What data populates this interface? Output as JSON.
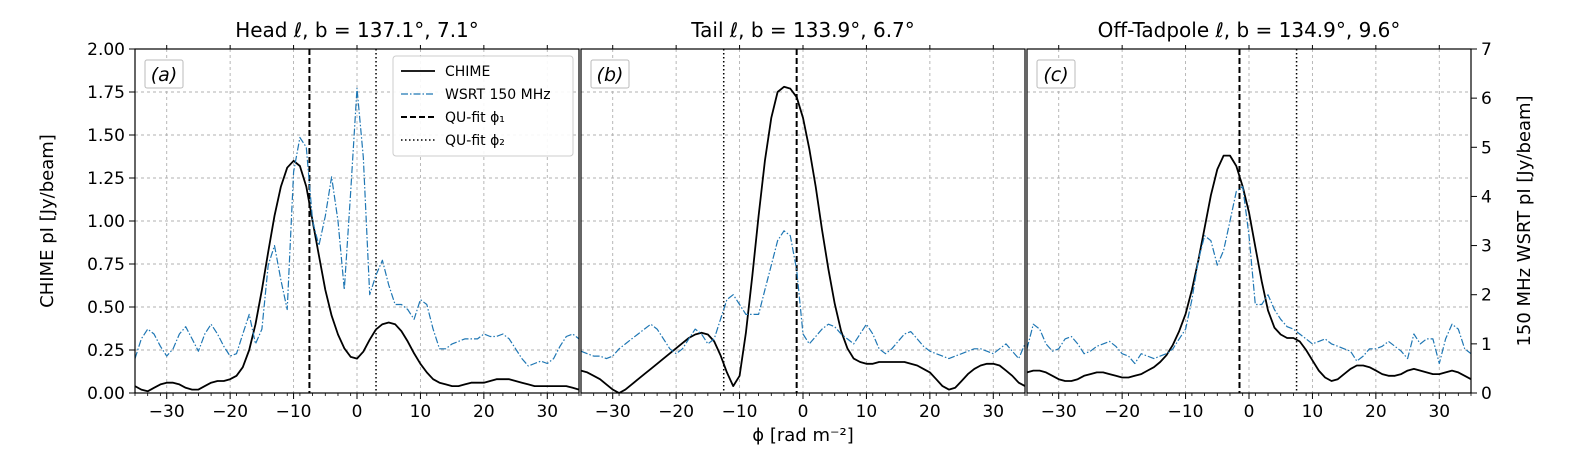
{
  "chart_data": {
    "type": "line",
    "xlabel": "ϕ [rad m⁻²]",
    "ylabel_left": "CHIME pI [Jy/beam]",
    "ylabel_right": "150 MHz WSRT pI [Jy/beam]",
    "xlim": [
      -35,
      35
    ],
    "ylim_left": [
      0,
      2.0
    ],
    "ylim_right": [
      0,
      7
    ],
    "x_ticks": [
      -30,
      -20,
      -10,
      0,
      10,
      20,
      30
    ],
    "x_tick_labels": [
      "−30",
      "−20",
      "−10",
      "0",
      "10",
      "20",
      "30"
    ],
    "y_left_ticks": [
      0,
      0.25,
      0.5,
      0.75,
      1.0,
      1.25,
      1.5,
      1.75,
      2.0
    ],
    "y_left_tick_labels": [
      "0.00",
      "0.25",
      "0.50",
      "0.75",
      "1.00",
      "1.25",
      "1.50",
      "1.75",
      "2.00"
    ],
    "y_right_ticks": [
      0,
      1,
      2,
      3,
      4,
      5,
      6,
      7
    ],
    "y_right_tick_labels": [
      "0",
      "1",
      "2",
      "3",
      "4",
      "5",
      "6",
      "7"
    ],
    "grid": true,
    "legend": {
      "placement": "top-right of panel (a)",
      "entries": [
        "CHIME",
        "WSRT 150 MHz",
        "QU-fit ϕ₁",
        "QU-fit ϕ₂"
      ]
    },
    "colors": {
      "chime": "#000000",
      "wsrt": "#1f77b4",
      "grid": "#b0b0b0"
    },
    "panels": [
      {
        "tag": "(a)",
        "title": "Head ℓ, b = 137.1°, 7.1°",
        "phi1": -7.5,
        "phi2": 3.0,
        "series": [
          {
            "name": "CHIME",
            "x": [
              -35,
              -34,
              -33,
              -32,
              -31,
              -30,
              -29,
              -28,
              -27,
              -26,
              -25,
              -24,
              -23,
              -22,
              -21,
              -20,
              -19,
              -18,
              -17,
              -16,
              -15,
              -14,
              -13,
              -12,
              -11,
              -10,
              -9,
              -8,
              -7,
              -6,
              -5,
              -4,
              -3,
              -2,
              -1,
              0,
              1,
              2,
              3,
              4,
              5,
              6,
              7,
              8,
              9,
              10,
              11,
              12,
              13,
              14,
              15,
              16,
              17,
              18,
              19,
              20,
              21,
              22,
              23,
              24,
              25,
              26,
              27,
              28,
              29,
              30,
              31,
              32,
              33,
              34,
              35
            ],
            "y": [
              0.04,
              0.02,
              0.01,
              0.03,
              0.05,
              0.06,
              0.06,
              0.05,
              0.03,
              0.02,
              0.02,
              0.04,
              0.06,
              0.07,
              0.07,
              0.08,
              0.1,
              0.15,
              0.25,
              0.4,
              0.6,
              0.82,
              1.03,
              1.2,
              1.31,
              1.35,
              1.32,
              1.2,
              1.0,
              0.8,
              0.6,
              0.45,
              0.34,
              0.26,
              0.21,
              0.2,
              0.24,
              0.31,
              0.37,
              0.4,
              0.41,
              0.4,
              0.36,
              0.3,
              0.23,
              0.17,
              0.12,
              0.08,
              0.06,
              0.05,
              0.04,
              0.04,
              0.05,
              0.06,
              0.06,
              0.06,
              0.07,
              0.08,
              0.08,
              0.08,
              0.07,
              0.06,
              0.05,
              0.04,
              0.04,
              0.04,
              0.04,
              0.04,
              0.04,
              0.03,
              0.02
            ]
          },
          {
            "name": "WSRT 150 MHz",
            "x": [
              -35,
              -34,
              -33,
              -32,
              -31,
              -30,
              -29,
              -28,
              -27,
              -26,
              -25,
              -24,
              -23,
              -22,
              -21,
              -20,
              -19,
              -18,
              -17,
              -16,
              -15,
              -14,
              -13,
              -12,
              -11,
              -10,
              -9,
              -8,
              -7,
              -6,
              -5,
              -4,
              -3,
              -2,
              -1,
              0,
              1,
              2,
              3,
              4,
              5,
              6,
              7,
              8,
              9,
              10,
              11,
              12,
              13,
              14,
              15,
              16,
              17,
              18,
              19,
              20,
              21,
              22,
              23,
              24,
              25,
              26,
              27,
              28,
              29,
              30,
              31,
              32,
              33,
              34,
              35
            ],
            "y": [
              0.7,
              1.1,
              1.3,
              1.2,
              0.95,
              0.75,
              0.9,
              1.2,
              1.35,
              1.1,
              0.85,
              1.2,
              1.4,
              1.2,
              0.95,
              0.75,
              0.8,
              1.2,
              1.6,
              1.0,
              1.3,
              2.6,
              3.0,
              2.3,
              1.7,
              4.5,
              5.2,
              5.0,
              3.5,
              3.0,
              3.6,
              4.4,
              3.5,
              2.1,
              4.1,
              6.2,
              4.8,
              2.0,
              2.4,
              2.7,
              2.2,
              1.8,
              1.8,
              1.7,
              1.5,
              1.9,
              1.8,
              1.3,
              0.9,
              0.9,
              1.0,
              1.05,
              1.1,
              1.1,
              1.1,
              1.2,
              1.15,
              1.15,
              1.2,
              1.1,
              0.9,
              0.7,
              0.55,
              0.6,
              0.65,
              0.6,
              0.7,
              0.95,
              1.15,
              1.2,
              1.1
            ]
          }
        ]
      },
      {
        "tag": "(b)",
        "title": "Tail ℓ, b = 133.9°, 6.7°",
        "phi1": -1.0,
        "phi2": -12.5,
        "series": [
          {
            "name": "CHIME",
            "x": [
              -35,
              -34,
              -33,
              -32,
              -31,
              -30,
              -29,
              -28,
              -27,
              -26,
              -25,
              -24,
              -23,
              -22,
              -21,
              -20,
              -19,
              -18,
              -17,
              -16,
              -15,
              -14,
              -13,
              -12,
              -11,
              -10,
              -9,
              -8,
              -7,
              -6,
              -5,
              -4,
              -3,
              -2,
              -1,
              0,
              1,
              2,
              3,
              4,
              5,
              6,
              7,
              8,
              9,
              10,
              11,
              12,
              13,
              14,
              15,
              16,
              17,
              18,
              19,
              20,
              21,
              22,
              23,
              24,
              25,
              26,
              27,
              28,
              29,
              30,
              31,
              32,
              33,
              34,
              35
            ],
            "y": [
              0.13,
              0.12,
              0.1,
              0.08,
              0.05,
              0.02,
              0.0,
              0.02,
              0.05,
              0.08,
              0.11,
              0.14,
              0.17,
              0.2,
              0.23,
              0.26,
              0.29,
              0.32,
              0.34,
              0.35,
              0.34,
              0.3,
              0.22,
              0.12,
              0.04,
              0.1,
              0.35,
              0.68,
              1.03,
              1.35,
              1.6,
              1.75,
              1.78,
              1.77,
              1.72,
              1.6,
              1.42,
              1.2,
              0.95,
              0.72,
              0.52,
              0.36,
              0.26,
              0.2,
              0.18,
              0.17,
              0.17,
              0.18,
              0.18,
              0.18,
              0.18,
              0.18,
              0.17,
              0.16,
              0.14,
              0.12,
              0.08,
              0.04,
              0.02,
              0.03,
              0.07,
              0.11,
              0.14,
              0.16,
              0.17,
              0.17,
              0.16,
              0.13,
              0.1,
              0.06,
              0.04
            ]
          },
          {
            "name": "WSRT 150 MHz",
            "x": [
              -35,
              -34,
              -33,
              -32,
              -31,
              -30,
              -29,
              -28,
              -27,
              -26,
              -25,
              -24,
              -23,
              -22,
              -21,
              -20,
              -19,
              -18,
              -17,
              -16,
              -15,
              -14,
              -13,
              -12,
              -11,
              -10,
              -9,
              -8,
              -7,
              -6,
              -5,
              -4,
              -3,
              -2,
              -1,
              0,
              1,
              2,
              3,
              4,
              5,
              6,
              7,
              8,
              9,
              10,
              11,
              12,
              13,
              14,
              15,
              16,
              17,
              18,
              19,
              20,
              21,
              22,
              23,
              24,
              25,
              26,
              27,
              28,
              29,
              30,
              31,
              32,
              33,
              34,
              35
            ],
            "y": [
              0.85,
              0.8,
              0.75,
              0.75,
              0.7,
              0.75,
              0.9,
              1.0,
              1.1,
              1.2,
              1.3,
              1.4,
              1.3,
              1.1,
              0.9,
              0.8,
              0.9,
              1.1,
              1.3,
              1.2,
              1.0,
              1.1,
              1.5,
              1.9,
              2.0,
              1.8,
              1.6,
              1.6,
              1.6,
              2.1,
              2.6,
              3.1,
              3.3,
              3.2,
              2.5,
              1.2,
              1.0,
              1.15,
              1.3,
              1.4,
              1.35,
              1.2,
              1.1,
              1.0,
              1.2,
              1.4,
              1.2,
              0.9,
              0.8,
              0.9,
              1.05,
              1.2,
              1.25,
              1.1,
              0.95,
              0.85,
              0.8,
              0.75,
              0.7,
              0.75,
              0.8,
              0.85,
              0.9,
              0.9,
              0.85,
              0.8,
              0.9,
              1.0,
              0.85,
              0.7,
              1.0
            ]
          }
        ]
      },
      {
        "tag": "(c)",
        "title": "Off-Tadpole  ℓ, b = 134.9°, 9.6°",
        "phi1": -1.5,
        "phi2": 7.5,
        "series": [
          {
            "name": "CHIME",
            "x": [
              -35,
              -34,
              -33,
              -32,
              -31,
              -30,
              -29,
              -28,
              -27,
              -26,
              -25,
              -24,
              -23,
              -22,
              -21,
              -20,
              -19,
              -18,
              -17,
              -16,
              -15,
              -14,
              -13,
              -12,
              -11,
              -10,
              -9,
              -8,
              -7,
              -6,
              -5,
              -4,
              -3,
              -2,
              -1,
              0,
              1,
              2,
              3,
              4,
              5,
              6,
              7,
              8,
              9,
              10,
              11,
              12,
              13,
              14,
              15,
              16,
              17,
              18,
              19,
              20,
              21,
              22,
              23,
              24,
              25,
              26,
              27,
              28,
              29,
              30,
              31,
              32,
              33,
              34,
              35
            ],
            "y": [
              0.12,
              0.13,
              0.13,
              0.12,
              0.1,
              0.08,
              0.07,
              0.07,
              0.08,
              0.1,
              0.11,
              0.12,
              0.12,
              0.11,
              0.1,
              0.09,
              0.09,
              0.1,
              0.11,
              0.13,
              0.15,
              0.18,
              0.22,
              0.28,
              0.36,
              0.46,
              0.6,
              0.77,
              0.96,
              1.15,
              1.3,
              1.38,
              1.38,
              1.32,
              1.2,
              1.05,
              0.85,
              0.65,
              0.48,
              0.38,
              0.34,
              0.32,
              0.32,
              0.3,
              0.25,
              0.19,
              0.13,
              0.09,
              0.07,
              0.08,
              0.11,
              0.14,
              0.16,
              0.16,
              0.15,
              0.13,
              0.11,
              0.1,
              0.1,
              0.11,
              0.13,
              0.14,
              0.13,
              0.12,
              0.11,
              0.11,
              0.12,
              0.13,
              0.12,
              0.1,
              0.08
            ]
          },
          {
            "name": "WSRT 150 MHz",
            "x": [
              -35,
              -34,
              -33,
              -32,
              -31,
              -30,
              -29,
              -28,
              -27,
              -26,
              -25,
              -24,
              -23,
              -22,
              -21,
              -20,
              -19,
              -18,
              -17,
              -16,
              -15,
              -14,
              -13,
              -12,
              -11,
              -10,
              -9,
              -8,
              -7,
              -6,
              -5,
              -4,
              -3,
              -2,
              -1,
              0,
              1,
              2,
              3,
              4,
              5,
              6,
              7,
              8,
              9,
              10,
              11,
              12,
              13,
              14,
              15,
              16,
              17,
              18,
              19,
              20,
              21,
              22,
              23,
              24,
              25,
              26,
              27,
              28,
              29,
              30,
              31,
              32,
              33,
              34,
              35
            ],
            "y": [
              0.9,
              1.4,
              1.3,
              1.0,
              0.85,
              0.9,
              1.1,
              1.15,
              1.0,
              0.8,
              0.85,
              0.95,
              1.0,
              1.05,
              0.95,
              0.8,
              0.75,
              0.6,
              0.8,
              0.75,
              0.7,
              0.75,
              0.8,
              0.9,
              1.1,
              1.3,
              1.9,
              2.7,
              3.2,
              3.1,
              2.6,
              2.9,
              3.5,
              4.1,
              4.2,
              3.2,
              1.8,
              1.8,
              2.0,
              1.7,
              1.5,
              1.35,
              1.3,
              1.2,
              1.1,
              1.0,
              1.05,
              1.1,
              1.0,
              0.95,
              0.9,
              0.85,
              0.65,
              0.75,
              0.9,
              0.9,
              0.95,
              1.05,
              0.95,
              0.85,
              0.7,
              1.2,
              1.0,
              1.1,
              1.1,
              0.6,
              1.1,
              1.4,
              1.3,
              0.9,
              0.8
            ]
          }
        ]
      }
    ]
  }
}
